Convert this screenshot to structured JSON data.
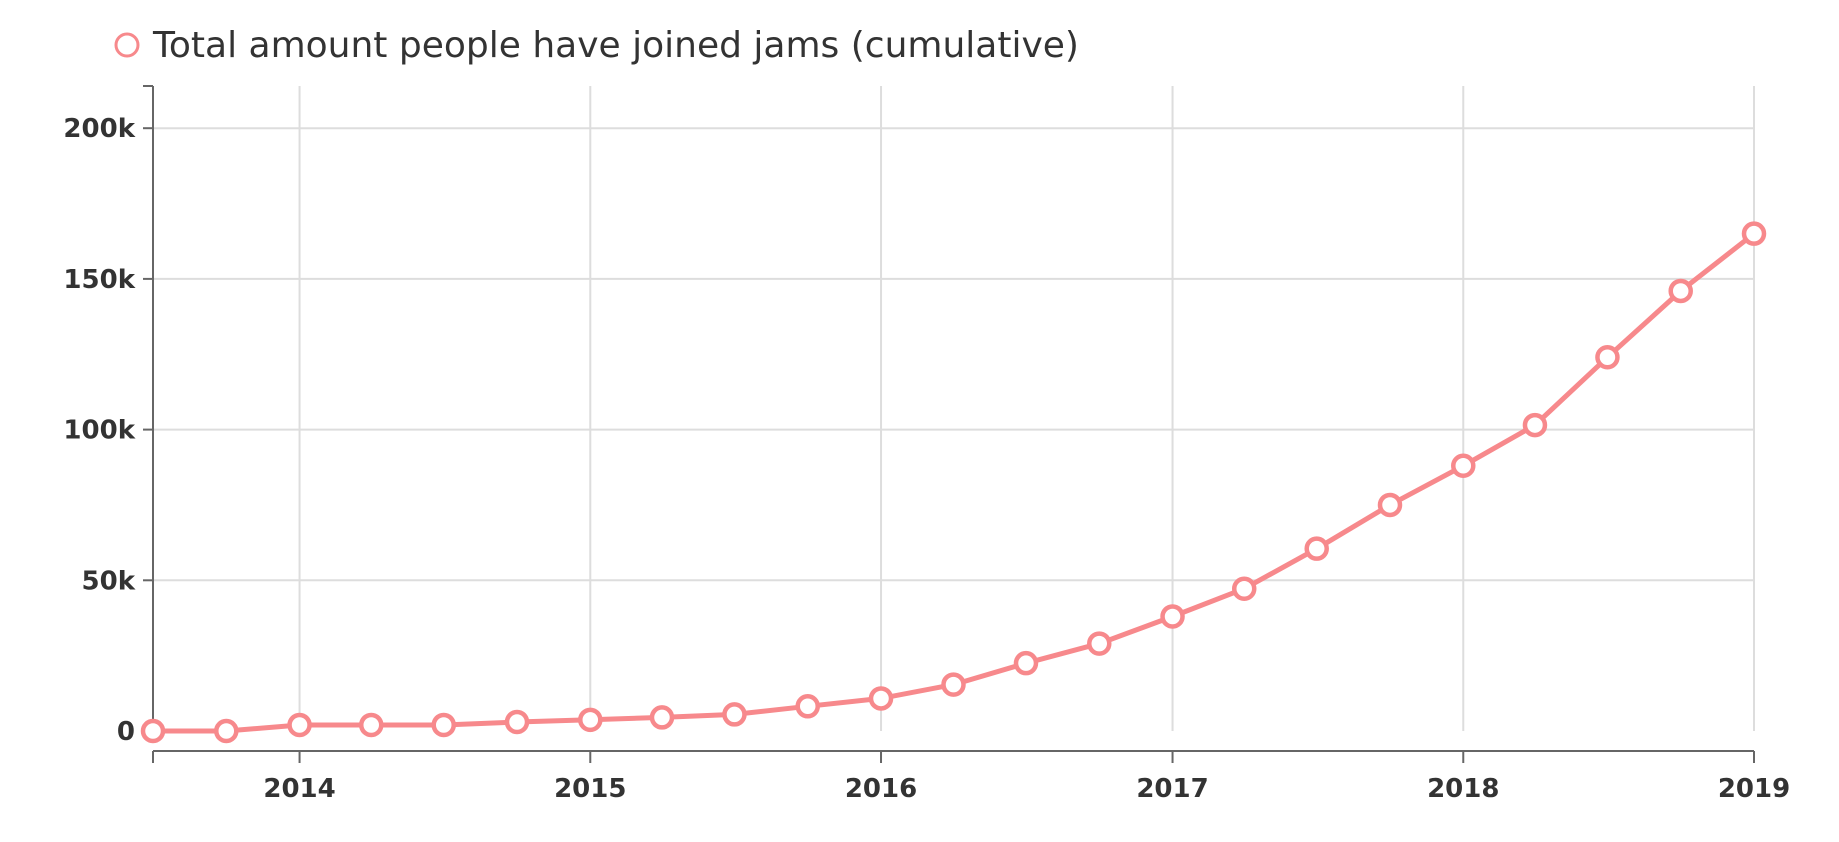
{
  "chart_data": {
    "type": "line",
    "legend": {
      "position": "top-left",
      "entries": [
        "Total amount people have joined jams (cumulative)"
      ]
    },
    "colors": {
      "series": "#f7898c",
      "grid": "#dddddd",
      "axis": "#666666",
      "text": "#333333"
    },
    "grid": true,
    "x_axis": {
      "type": "date",
      "range": [
        "2013-07-01",
        "2019-01-01"
      ],
      "ticks": [
        "2014",
        "2015",
        "2016",
        "2017",
        "2018",
        "2019"
      ]
    },
    "y_axis": {
      "range": [
        0,
        214000
      ],
      "ticks": [
        0,
        50000,
        100000,
        150000,
        200000
      ],
      "tick_labels": [
        "0",
        "50k",
        "100k",
        "150k",
        "200k"
      ]
    },
    "series": [
      {
        "name": "Total amount people have joined jams (cumulative)",
        "points": [
          {
            "x": "2013-07-01",
            "y": 0
          },
          {
            "x": "2013-10-01",
            "y": 0
          },
          {
            "x": "2014-01-01",
            "y": 2000
          },
          {
            "x": "2014-04-01",
            "y": 2000
          },
          {
            "x": "2014-07-01",
            "y": 2000
          },
          {
            "x": "2014-10-01",
            "y": 3000
          },
          {
            "x": "2015-01-01",
            "y": 3700
          },
          {
            "x": "2015-04-01",
            "y": 4500
          },
          {
            "x": "2015-07-01",
            "y": 5500
          },
          {
            "x": "2015-10-01",
            "y": 8200
          },
          {
            "x": "2016-01-01",
            "y": 10800
          },
          {
            "x": "2016-04-01",
            "y": 15400
          },
          {
            "x": "2016-07-01",
            "y": 22500
          },
          {
            "x": "2016-10-01",
            "y": 29000
          },
          {
            "x": "2017-01-01",
            "y": 38000
          },
          {
            "x": "2017-04-01",
            "y": 47200
          },
          {
            "x": "2017-07-01",
            "y": 60500
          },
          {
            "x": "2017-10-01",
            "y": 75000
          },
          {
            "x": "2018-01-01",
            "y": 88000
          },
          {
            "x": "2018-04-01",
            "y": 101500
          },
          {
            "x": "2018-07-01",
            "y": 124000
          },
          {
            "x": "2018-10-01",
            "y": 146000
          },
          {
            "x": "2019-01-01",
            "y": 165000
          }
        ]
      }
    ]
  }
}
